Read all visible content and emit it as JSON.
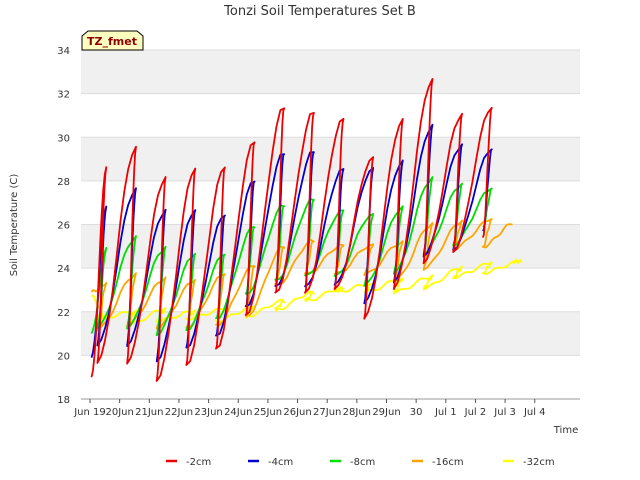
{
  "chart_data": {
    "type": "line",
    "title": "Tonzi Soil Temperatures Set B",
    "xlabel": "Time",
    "ylabel": "Soil Temperature (C)",
    "badge": "TZ_fmet",
    "ylim": [
      18,
      34
    ],
    "yticks": [
      "18",
      "20",
      "22",
      "24",
      "26",
      "28",
      "30",
      "32",
      "34"
    ],
    "xlim": [
      0,
      16
    ],
    "xticks": [
      {
        "label": "Jun 19",
        "day": 0
      },
      {
        "label": "20Jun",
        "day": 1
      },
      {
        "label": "21Jun",
        "day": 2
      },
      {
        "label": "22Jun",
        "day": 3
      },
      {
        "label": "23Jun",
        "day": 4
      },
      {
        "label": "24Jun",
        "day": 5
      },
      {
        "label": "25Jun",
        "day": 6
      },
      {
        "label": "26Jun",
        "day": 7
      },
      {
        "label": "27Jun",
        "day": 8
      },
      {
        "label": "28Jun",
        "day": 9
      },
      {
        "label": "29Jun",
        "day": 10
      },
      {
        "label": "30",
        "day": 11
      },
      {
        "label": "Jul 1",
        "day": 12
      },
      {
        "label": "Jul 2",
        "day": 13
      },
      {
        "label": "Jul 3",
        "day": 14
      },
      {
        "label": "Jul 4",
        "day": 15
      }
    ],
    "legend_position": "bottom",
    "series": [
      {
        "name": "-2cm",
        "color": "#ee0000",
        "min": [
          19.0,
          19.7,
          19.7,
          18.9,
          19.6,
          20.3,
          21.8,
          22.8,
          22.8,
          23.0,
          21.7,
          23.1,
          24.3,
          24.8,
          25.4
        ],
        "max": [
          28.6,
          29.5,
          28.1,
          28.5,
          28.6,
          29.8,
          31.4,
          31.2,
          30.9,
          29.1,
          30.8,
          32.6,
          31.0,
          31.3
        ]
      },
      {
        "name": "-4cm",
        "color": "#0000cc",
        "min": [
          19.9,
          20.5,
          20.5,
          19.8,
          20.4,
          20.9,
          22.2,
          23.1,
          23.1,
          23.2,
          22.4,
          23.4,
          24.6,
          24.9,
          25.7
        ],
        "max": [
          26.8,
          27.6,
          26.6,
          26.6,
          26.4,
          28.0,
          29.3,
          29.4,
          28.6,
          28.6,
          28.9,
          30.5,
          29.6,
          29.4
        ]
      },
      {
        "name": "-8cm",
        "color": "#00dd00",
        "min": [
          21.0,
          21.3,
          21.3,
          21.0,
          21.2,
          21.7,
          22.8,
          23.4,
          23.6,
          23.6,
          23.2,
          23.8,
          24.7,
          25.1,
          25.9
        ],
        "max": [
          24.9,
          25.4,
          24.9,
          24.6,
          24.6,
          25.9,
          26.9,
          27.2,
          26.7,
          26.5,
          26.8,
          28.1,
          27.8,
          27.6
        ]
      },
      {
        "name": "-16cm",
        "color": "#ffa500",
        "min": [
          22.9,
          21.2,
          21.4,
          21.3,
          21.3,
          21.4,
          21.8,
          23.2,
          23.7,
          23.7,
          23.7,
          23.4,
          24.0,
          24.9,
          25.0,
          26.0
        ],
        "max": [
          23.3,
          23.7,
          23.5,
          23.4,
          23.7,
          24.1,
          25.0,
          25.3,
          25.1,
          25.1,
          25.2,
          26.0,
          26.1,
          26.2
        ]
      },
      {
        "name": "-32cm",
        "color": "#ffff00",
        "min": [
          22.7,
          21.7,
          21.4,
          21.6,
          21.7,
          21.6,
          21.8,
          22.1,
          22.5,
          22.9,
          22.9,
          22.9,
          23.1,
          23.6,
          23.8,
          24.3
        ],
        "max": [
          21.7,
          22.0,
          22.1,
          22.0,
          22.1,
          22.2,
          22.5,
          22.9,
          23.1,
          23.3,
          23.5,
          23.6,
          24.0,
          24.2,
          24.3
        ]
      }
    ]
  }
}
